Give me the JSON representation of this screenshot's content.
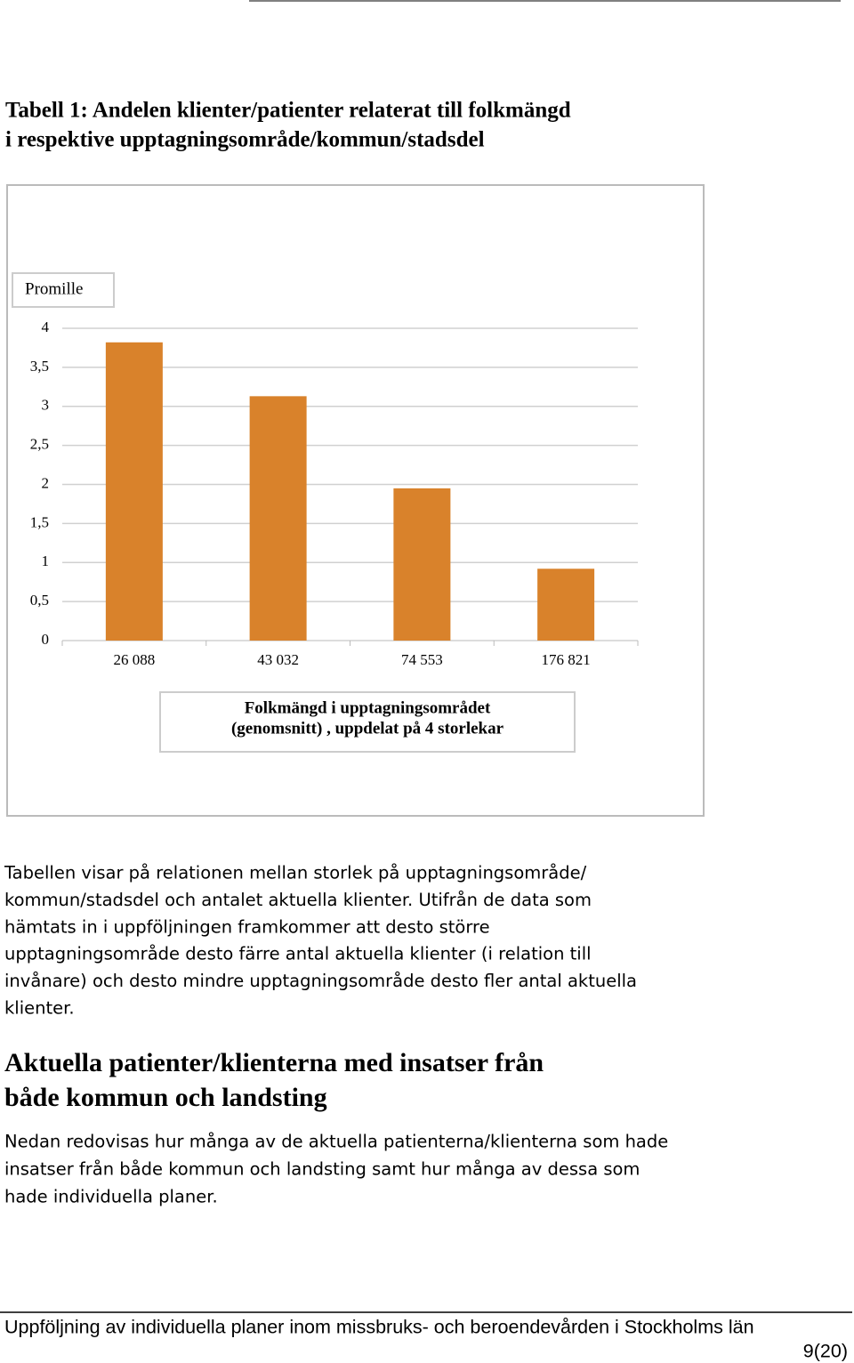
{
  "header": {
    "title_lines": [
      "Tabell 1: Andelen klienter/patienter relaterat till folkmängd",
      "i respektive upptagningsområde/kommun/stadsdel"
    ]
  },
  "chart_data": {
    "type": "bar",
    "ylabel": "Promille",
    "xlabel": [
      "Folkmängd i upptagningsområdet",
      "(genomsnitt) , uppdelat på 4 storlekar"
    ],
    "categories": [
      "26 088",
      "43 032",
      "74 553",
      "176 821"
    ],
    "values": [
      3.82,
      3.13,
      1.95,
      0.92
    ],
    "color": "#d9822b",
    "ylim": [
      0,
      4
    ],
    "yticks": [
      0,
      {
        "value": 0.5,
        "label": "0,5"
      },
      1,
      {
        "value": 1.5,
        "label": "1,5"
      },
      2,
      {
        "value": 2.5,
        "label": "2,5"
      },
      3,
      {
        "value": 3.5,
        "label": "3,5"
      },
      4
    ],
    "grid": true
  },
  "body": {
    "paragraph1": [
      "Tabellen visar på relationen mellan storlek på upptagningsområde/",
      "kommun/stadsdel och antalet aktuella klienter. Utifrån de data som",
      "hämtats in i uppföljningen framkommer att desto större",
      "upptagningsområde desto färre antal aktuella klienter (i relation till",
      "invånare) och desto mindre upptagningsområde desto fler antal aktuella",
      "klienter."
    ],
    "heading": [
      "Aktuella patienter/klienterna med insatser från",
      "både kommun och landsting"
    ],
    "paragraph2": [
      "Nedan redovisas hur många av de aktuella patienterna/klienterna som hade",
      "insatser från både kommun och landsting samt hur många av dessa som",
      "hade individuella planer."
    ]
  },
  "footer": {
    "text": "Uppföljning av individuella planer inom missbruks- och beroendevården i Stockholms län",
    "page": "9(20)"
  }
}
